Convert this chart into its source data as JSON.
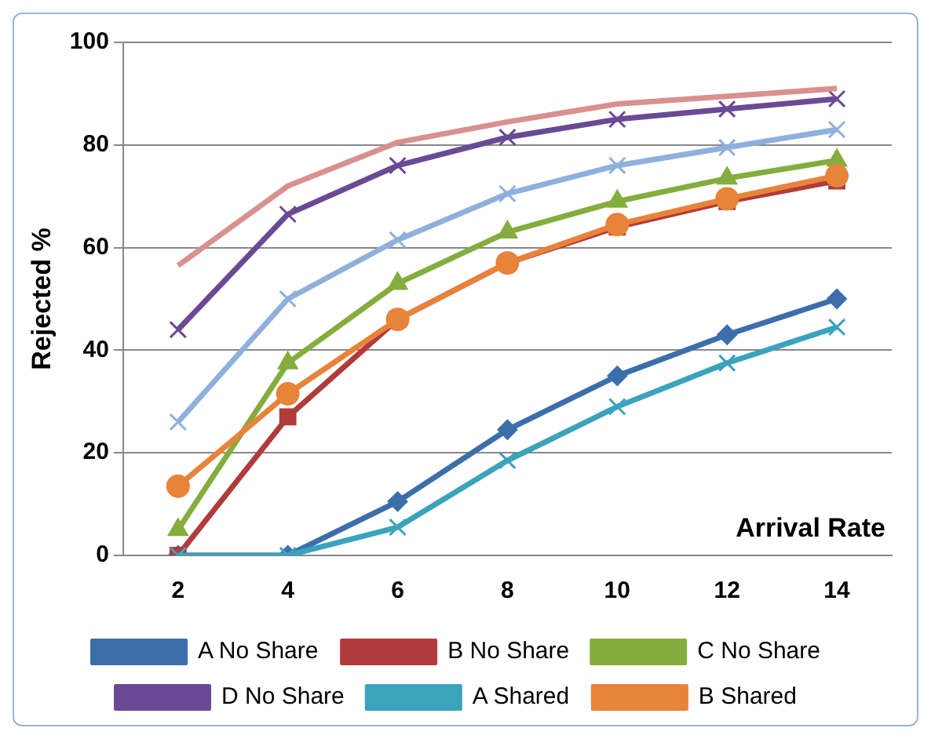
{
  "chart_data": {
    "type": "line",
    "ylabel": "Rejected %",
    "xlabel": "Arrival Rate",
    "categories": [
      "2",
      "4",
      "6",
      "8",
      "10",
      "12",
      "14"
    ],
    "ylim": [
      0,
      100
    ],
    "yticks": [
      0,
      20,
      40,
      60,
      80,
      100
    ],
    "grid": "y",
    "legend": "bottom",
    "line_style": "solid",
    "series": [
      {
        "name": "A No Share",
        "color": "#3c6eab",
        "marker": "diamond",
        "values": [
          0,
          0,
          10.5,
          24.5,
          35,
          43,
          50
        ]
      },
      {
        "name": "B No Share",
        "color": "#b13a3a",
        "marker": "square",
        "values": [
          0,
          27,
          46,
          57,
          64,
          69,
          73
        ]
      },
      {
        "name": "C No Share",
        "color": "#84ad3e",
        "marker": "triangle",
        "values": [
          5,
          37.5,
          53,
          63,
          69,
          73.5,
          77
        ]
      },
      {
        "name": "D No Share",
        "color": "#6a4a94",
        "marker": "cross",
        "values": [
          44,
          66.5,
          76,
          81.5,
          85,
          87,
          89
        ]
      },
      {
        "name": "A Shared",
        "color": "#3ba3bb",
        "marker": "cross",
        "values": [
          0,
          0,
          5.5,
          18.5,
          29,
          37.5,
          44.5
        ]
      },
      {
        "name": "B Shared",
        "color": "#e8833a",
        "marker": "circle",
        "values": [
          13.5,
          31.5,
          46,
          57,
          64.5,
          69.5,
          74
        ]
      },
      {
        "color": "#d9908f",
        "marker": "none",
        "values": [
          56.5,
          72,
          80.5,
          84.5,
          88,
          89.5,
          91
        ]
      },
      {
        "color": "#8fb0dc",
        "marker": "cross",
        "values": [
          26,
          50,
          61.5,
          70.5,
          76,
          79.5,
          83
        ]
      }
    ]
  }
}
